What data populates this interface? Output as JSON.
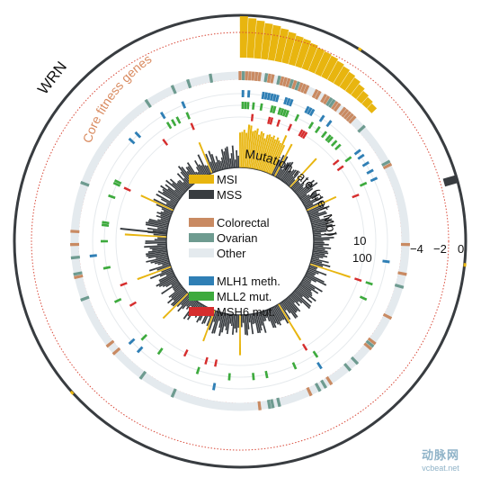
{
  "chart_data": {
    "type": "circular-bar",
    "gene_label": "WRN",
    "core_label": "Core fitness genes",
    "mutation_label": "Mutation rate (per Mb)",
    "score_ticks": [
      "−4",
      "−2",
      "0"
    ],
    "mutation_ticks": [
      "10",
      "100"
    ],
    "legend": {
      "msi_status": [
        {
          "label": "MSI",
          "color": "#e8b50f"
        },
        {
          "label": "MSS",
          "color": "#383c40"
        }
      ],
      "tissue": [
        {
          "label": "Colorectal",
          "color": "#c98a62"
        },
        {
          "label": "Ovarian",
          "color": "#6e9b90"
        },
        {
          "label": "Other",
          "color": "#e4eaee"
        }
      ],
      "alterations": [
        {
          "label": "MLH1 meth.",
          "color": "#2f7fb5"
        },
        {
          "label": "MLL2 mut.",
          "color": "#3daa3d"
        },
        {
          "label": "MSH6 mut.",
          "color": "#d62d2d"
        }
      ]
    },
    "wrn_dependency_score_sorted": [
      -4.6,
      -4.4,
      -4.2,
      -4.0,
      -3.9,
      -3.7,
      -3.5,
      -3.3,
      -3.2,
      -3.0,
      -2.8,
      -2.7,
      -2.6,
      -2.4,
      -2.2,
      -2.0,
      -1.8,
      -1.5,
      -1.2,
      -1.0,
      -0.8
    ],
    "score_range": [
      -4.8,
      0
    ]
  },
  "watermark": {
    "main": "动脉网",
    "sub": "vcbeat.net"
  }
}
